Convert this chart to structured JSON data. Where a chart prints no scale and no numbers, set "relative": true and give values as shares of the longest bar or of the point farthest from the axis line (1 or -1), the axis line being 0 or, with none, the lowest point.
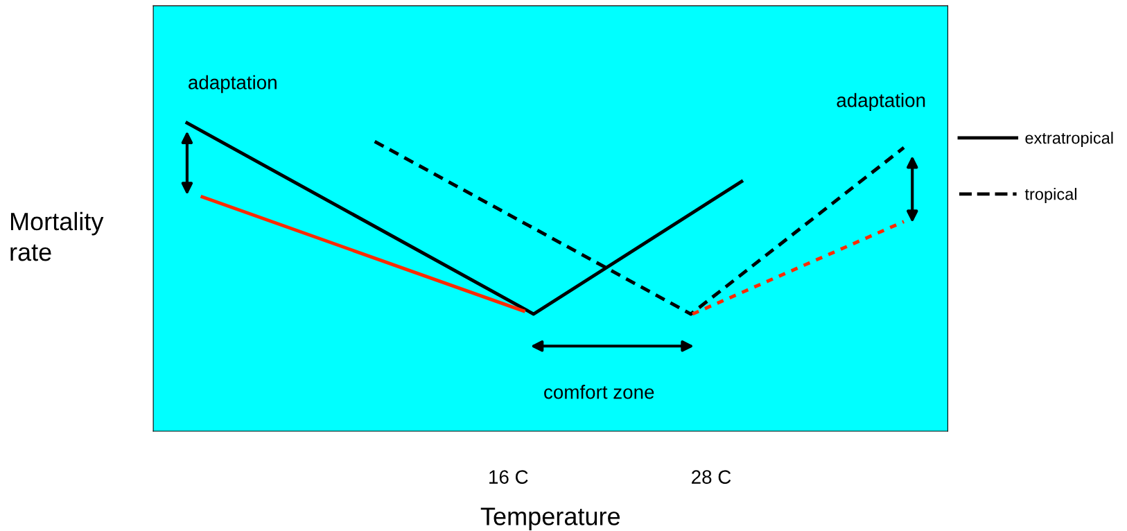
{
  "chart_data": {
    "type": "line",
    "relative": true,
    "xlabel": "Temperature",
    "ylabel": "Mortality rate",
    "xlim": [
      -5,
      42
    ],
    "xticks": [
      {
        "value": 16,
        "label": "16 C"
      },
      {
        "value": 28,
        "label": "28 C"
      }
    ],
    "tick_labels": "x",
    "legend": "right",
    "grid": false,
    "series": [
      {
        "name": "extratropical",
        "color": "#000000",
        "line_style": "solid",
        "x": [
          -3.0,
          17.5,
          29.8
        ],
        "values": [
          1.0,
          0.38,
          0.81
        ]
      },
      {
        "name": "tropical",
        "color": "#000000",
        "line_style": "dashed",
        "x": [
          8.1,
          26.8,
          39.4
        ],
        "values": [
          0.94,
          0.38,
          0.92
        ]
      },
      {
        "color": "#ff2a00",
        "line_style": "solid",
        "x": [
          -2.1,
          16.9
        ],
        "values": [
          0.76,
          0.39
        ]
      },
      {
        "color": "#ff2a00",
        "line_style": "dotted",
        "x": [
          26.9,
          39.4
        ],
        "values": [
          0.38,
          0.68
        ]
      }
    ],
    "annotations": [
      "adaptation",
      "adaptation",
      "comfort zone"
    ]
  }
}
